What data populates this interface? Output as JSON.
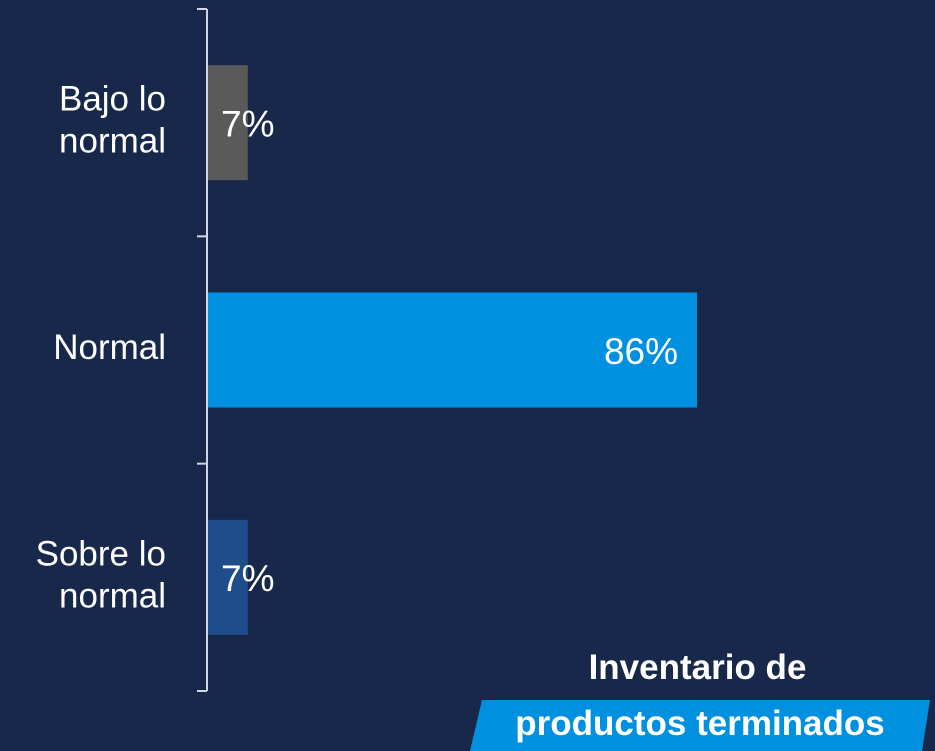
{
  "chart_data": {
    "type": "bar",
    "orientation": "horizontal",
    "categories": [
      "Bajo lo normal",
      "Normal",
      "Sobre lo normal"
    ],
    "category_lines": [
      [
        "Bajo lo",
        "normal"
      ],
      [
        "Normal"
      ],
      [
        "Sobre lo",
        "normal"
      ]
    ],
    "values": [
      7,
      86,
      7
    ],
    "value_labels": [
      "7%",
      "86%",
      "7%"
    ],
    "bar_colors": [
      "#5a5a5a",
      "#0090e0",
      "#1f4d8c"
    ],
    "label_colors": [
      "#ffffff",
      "#ffffff",
      "#ffffff"
    ],
    "xlim": [
      0,
      100
    ],
    "grid": false,
    "legend": "none"
  },
  "title": {
    "line1": "Inventario de",
    "line2": "productos terminados"
  },
  "colors": {
    "background": "#18284a",
    "title_band": "#0090e0",
    "axis": "#cfd5e3"
  }
}
